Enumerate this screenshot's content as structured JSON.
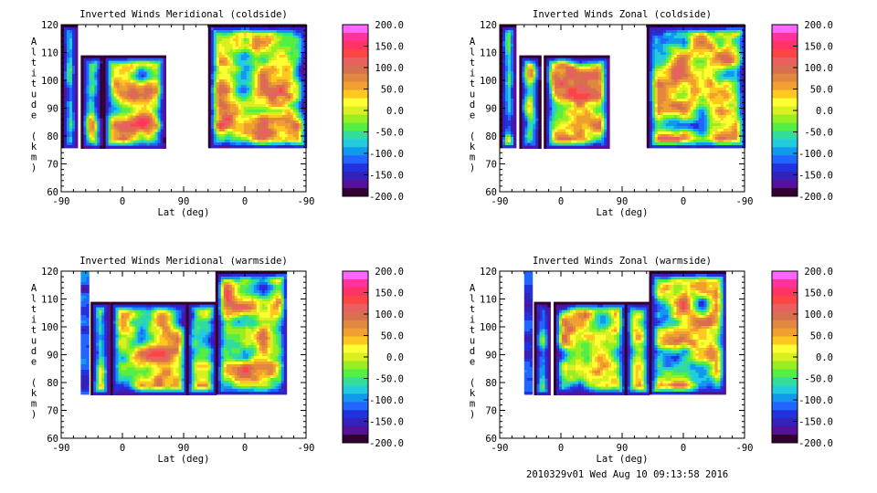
{
  "chart_data": [
    {
      "type": "heatmap",
      "title": "Inverted Winds Meridional (coldside)",
      "xlabel": "Lat (deg)",
      "ylabel": "Altitude (km)",
      "x_ticks": [
        "-90",
        "0",
        "90",
        "0",
        "-90"
      ],
      "y_ticks": [
        60,
        70,
        80,
        90,
        100,
        110,
        120
      ],
      "ylim": [
        60,
        120
      ],
      "colorbar_ticks": [
        "200.0",
        "150.0",
        "100.0",
        "50.0",
        "0.0",
        "-50.0",
        "-100.0",
        "-150.0",
        "-200.0"
      ],
      "colorbar_range": [
        -200,
        200
      ],
      "data_altitude_range": [
        76,
        120
      ]
    },
    {
      "type": "heatmap",
      "title": "Inverted Winds Zonal (coldside)",
      "xlabel": "Lat (deg)",
      "ylabel": "Altitude (km)",
      "x_ticks": [
        "-90",
        "0",
        "90",
        "0",
        "-90"
      ],
      "y_ticks": [
        60,
        70,
        80,
        90,
        100,
        110,
        120
      ],
      "ylim": [
        60,
        120
      ],
      "colorbar_ticks": [
        "200.0",
        "150.0",
        "100.0",
        "50.0",
        "0.0",
        "-50.0",
        "-100.0",
        "-150.0",
        "-200.0"
      ],
      "colorbar_range": [
        -200,
        200
      ],
      "data_altitude_range": [
        76,
        120
      ]
    },
    {
      "type": "heatmap",
      "title": "Inverted Winds Meridional (warmside)",
      "xlabel": "Lat (deg)",
      "ylabel": "Altitude (km)",
      "x_ticks": [
        "-90",
        "0",
        "90",
        "0",
        "-90"
      ],
      "y_ticks": [
        60,
        70,
        80,
        90,
        100,
        110,
        120
      ],
      "ylim": [
        60,
        120
      ],
      "colorbar_ticks": [
        "200.0",
        "150.0",
        "100.0",
        "50.0",
        "0.0",
        "-50.0",
        "-100.0",
        "-150.0",
        "-200.0"
      ],
      "colorbar_range": [
        -200,
        200
      ],
      "data_altitude_range": [
        76,
        120
      ]
    },
    {
      "type": "heatmap",
      "title": "Inverted Winds Zonal (warmside)",
      "xlabel": "Lat (deg)",
      "ylabel": "Altitude (km)",
      "x_ticks": [
        "-90",
        "0",
        "90",
        "0",
        "-90"
      ],
      "y_ticks": [
        60,
        70,
        80,
        90,
        100,
        110,
        120
      ],
      "ylim": [
        60,
        120
      ],
      "colorbar_ticks": [
        "200.0",
        "150.0",
        "100.0",
        "50.0",
        "0.0",
        "-50.0",
        "-100.0",
        "-150.0",
        "-200.0"
      ],
      "colorbar_range": [
        -200,
        200
      ],
      "data_altitude_range": [
        76,
        120
      ]
    }
  ],
  "colorbar_colors": [
    "#ff66ff",
    "#ff3399",
    "#ff3366",
    "#ff4444",
    "#e86060",
    "#d87050",
    "#e08840",
    "#f0a030",
    "#ffc820",
    "#ffff33",
    "#d8f020",
    "#99ee22",
    "#55ee44",
    "#33dd99",
    "#22ccdd",
    "#1199ee",
    "#2266ff",
    "#2233dd",
    "#3322bb",
    "#551199",
    "#330033"
  ],
  "footer": "2010329v01 Wed Aug 10 09:13:58 2016"
}
